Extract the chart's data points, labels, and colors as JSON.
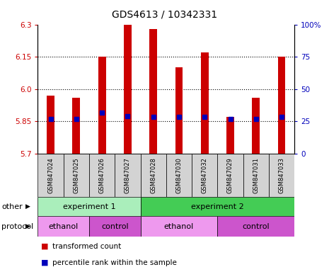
{
  "title": "GDS4613 / 10342331",
  "samples": [
    "GSM847024",
    "GSM847025",
    "GSM847026",
    "GSM847027",
    "GSM847028",
    "GSM847030",
    "GSM847032",
    "GSM847029",
    "GSM847031",
    "GSM847033"
  ],
  "bar_values": [
    5.97,
    5.96,
    6.15,
    6.3,
    6.28,
    6.1,
    6.17,
    5.87,
    5.96,
    6.15
  ],
  "bar_base": 5.7,
  "percentile_values": [
    5.862,
    5.86,
    5.892,
    5.873,
    5.872,
    5.872,
    5.872,
    5.86,
    5.862,
    5.872
  ],
  "ylim_left": [
    5.7,
    6.3
  ],
  "ylim_right": [
    0,
    100
  ],
  "yticks_left": [
    5.7,
    5.85,
    6.0,
    6.15,
    6.3
  ],
  "yticks_right": [
    0,
    25,
    50,
    75,
    100
  ],
  "bar_color": "#cc0000",
  "percentile_color": "#0000bb",
  "other_row": [
    {
      "label": "experiment 1",
      "start": 0,
      "end": 4,
      "color": "#aaeebb"
    },
    {
      "label": "experiment 2",
      "start": 4,
      "end": 10,
      "color": "#44cc55"
    }
  ],
  "protocol_row": [
    {
      "label": "ethanol",
      "start": 0,
      "end": 2,
      "color": "#ee99ee"
    },
    {
      "label": "control",
      "start": 2,
      "end": 4,
      "color": "#cc55cc"
    },
    {
      "label": "ethanol",
      "start": 4,
      "end": 7,
      "color": "#ee99ee"
    },
    {
      "label": "control",
      "start": 7,
      "end": 10,
      "color": "#cc55cc"
    }
  ],
  "legend_items": [
    {
      "label": "transformed count",
      "color": "#cc0000"
    },
    {
      "label": "percentile rank within the sample",
      "color": "#0000bb"
    }
  ],
  "title_fontsize": 10,
  "tick_fontsize": 7.5,
  "label_fontsize": 8,
  "sample_fontsize": 6,
  "annot_fontsize": 8
}
